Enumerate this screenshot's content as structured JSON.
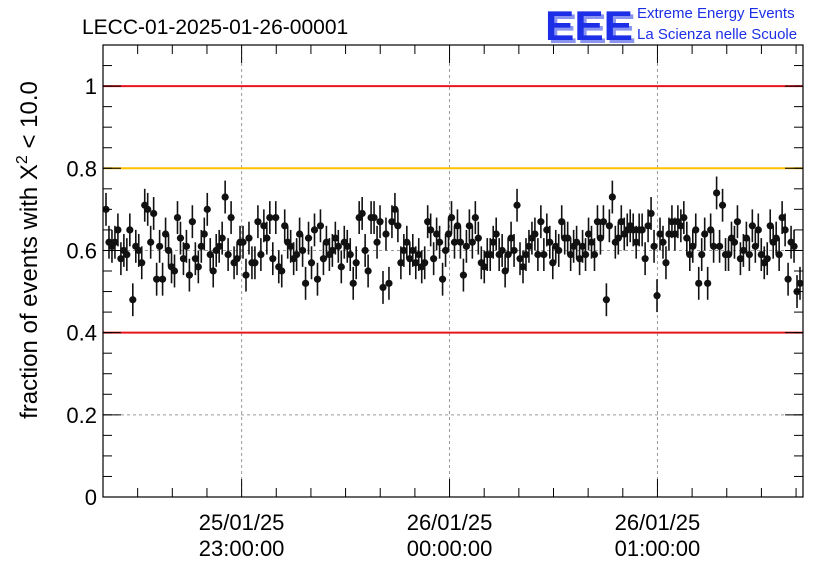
{
  "header": {
    "run_title": "LECC-01-2025-01-26-00001",
    "logo_text": "EEE",
    "project_line1": "Extreme Energy Events",
    "project_line2": "La Scienza nelle Scuole"
  },
  "colors": {
    "red_line": "#e8141e",
    "orange_line": "#ffc000",
    "logo_blue": "#1d2fe6",
    "point": "#111111",
    "grid": "#9a9a9a"
  },
  "chart_data": {
    "type": "scatter",
    "title": "LECC-01-2025-01-26-00001",
    "ylabel_prefix": "fraction of events with ",
    "ylabel_chi": "X",
    "ylabel_exp": "2",
    "ylabel_suffix": " < 10.0",
    "ylim": [
      0,
      1.1
    ],
    "yticks": [
      {
        "value": 0,
        "label": "0"
      },
      {
        "value": 0.2,
        "label": "0.2"
      },
      {
        "value": 0.4,
        "label": "0.4"
      },
      {
        "value": 0.6,
        "label": "0.6"
      },
      {
        "value": 0.8,
        "label": "0.8"
      },
      {
        "value": 1.0,
        "label": "1"
      }
    ],
    "xlim_minutes": [
      -50,
      51
    ],
    "xticks": [
      {
        "minutes": -30,
        "date": "25/01/25",
        "time": "23:00:00"
      },
      {
        "minutes": 0,
        "date": "26/01/25",
        "time": "00:00:00"
      },
      {
        "minutes": 30,
        "date": "26/01/25",
        "time": "01:00:00"
      }
    ],
    "reference_lines": [
      {
        "y": 1.0,
        "color": "#e8141e"
      },
      {
        "y": 0.8,
        "color": "#ffc000"
      },
      {
        "y": 0.4,
        "color": "#e8141e"
      }
    ],
    "grid": true,
    "error_half_width": 0.04,
    "series": [
      {
        "y": [
          0.7,
          0.62,
          0.61,
          0.62,
          0.65,
          0.58,
          0.6,
          0.59,
          0.65,
          0.48,
          0.61,
          0.6,
          0.57,
          0.71,
          0.7,
          0.62,
          0.69,
          0.53,
          0.61,
          0.53,
          0.64,
          0.6,
          0.56,
          0.55,
          0.68,
          0.63,
          0.58,
          0.61,
          0.54,
          0.67,
          0.58,
          0.56,
          0.61,
          0.64,
          0.7,
          0.59,
          0.55,
          0.6,
          0.61,
          0.63,
          0.73,
          0.59,
          0.68,
          0.57,
          0.58,
          0.62,
          0.62,
          0.54,
          0.63,
          0.57,
          0.57,
          0.67,
          0.59,
          0.66,
          0.63,
          0.68,
          0.58,
          0.68,
          0.56,
          0.55,
          0.66,
          0.62,
          0.61,
          0.58,
          0.59,
          0.64,
          0.6,
          0.52,
          0.63,
          0.57,
          0.65,
          0.53,
          0.66,
          0.58,
          0.62,
          0.59,
          0.6,
          0.63,
          0.61,
          0.56,
          0.62,
          0.61,
          0.59,
          0.52,
          0.57,
          0.68,
          0.69,
          0.6,
          0.55,
          0.68,
          0.68,
          0.62,
          0.67,
          0.51,
          0.64,
          0.52,
          0.67,
          0.7,
          0.66,
          0.57,
          0.6,
          0.62,
          0.58,
          0.6,
          0.57,
          0.59,
          0.56,
          0.57,
          0.67,
          0.65,
          0.58,
          0.64,
          0.62,
          0.53,
          0.6,
          0.64,
          0.68,
          0.62,
          0.66,
          0.62,
          0.54,
          0.61,
          0.66,
          0.62,
          0.68,
          0.63,
          0.57,
          0.56,
          0.59,
          0.59,
          0.62,
          0.64,
          0.59,
          0.6,
          0.55,
          0.59,
          0.63,
          0.6,
          0.71,
          0.58,
          0.56,
          0.59,
          0.61,
          0.63,
          0.64,
          0.59,
          0.67,
          0.59,
          0.65,
          0.62,
          0.57,
          0.61,
          0.6,
          0.67,
          0.63,
          0.63,
          0.59,
          0.61,
          0.62,
          0.58,
          0.61,
          0.59,
          0.64,
          0.62,
          0.59,
          0.67,
          0.63,
          0.67,
          0.48,
          0.66,
          0.73,
          0.62,
          0.63,
          0.67,
          0.64,
          0.65,
          0.66,
          0.65,
          0.62,
          0.65,
          0.65,
          0.58,
          0.66,
          0.69,
          0.61,
          0.49,
          0.64,
          0.62,
          0.57,
          0.64,
          0.67,
          0.64,
          0.67,
          0.66,
          0.68,
          0.63,
          0.59,
          0.61,
          0.65,
          0.52,
          0.59,
          0.64,
          0.52,
          0.65,
          0.61,
          0.74,
          0.61,
          0.71,
          0.59,
          0.59,
          0.63,
          0.62,
          0.67,
          0.58,
          0.6,
          0.63,
          0.59,
          0.66,
          0.61,
          0.65,
          0.59,
          0.57,
          0.58,
          0.66,
          0.62,
          0.63,
          0.59,
          0.68,
          0.65,
          0.53,
          0.62,
          0.61,
          0.5,
          0.52
        ]
      }
    ]
  }
}
